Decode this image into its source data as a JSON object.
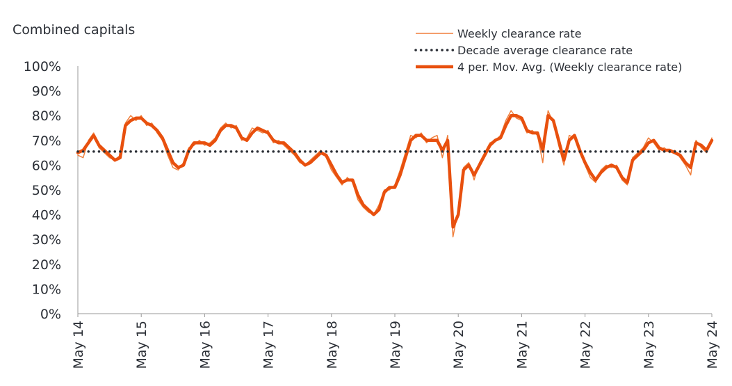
{
  "chart_data": {
    "type": "line",
    "title": "Combined capitals",
    "categories": [
      "May 14",
      null,
      null,
      null,
      null,
      null,
      null,
      null,
      null,
      null,
      null,
      null,
      "May 15",
      null,
      null,
      null,
      null,
      null,
      null,
      null,
      null,
      null,
      null,
      null,
      "May 16",
      null,
      null,
      null,
      null,
      null,
      null,
      null,
      null,
      null,
      null,
      null,
      "May 17",
      null,
      null,
      null,
      null,
      null,
      null,
      null,
      null,
      null,
      null,
      null,
      "May 18",
      null,
      null,
      null,
      null,
      null,
      null,
      null,
      null,
      null,
      null,
      null,
      "May 19",
      null,
      null,
      null,
      null,
      null,
      null,
      null,
      null,
      null,
      null,
      null,
      "May 20",
      null,
      null,
      null,
      null,
      null,
      null,
      null,
      null,
      null,
      null,
      null,
      "May 21",
      null,
      null,
      null,
      null,
      null,
      null,
      null,
      null,
      null,
      null,
      null,
      "May 22",
      null,
      null,
      null,
      null,
      null,
      null,
      null,
      null,
      null,
      null,
      null,
      "May 23",
      null,
      null,
      null,
      null,
      null,
      null,
      null,
      null,
      null,
      null,
      null,
      "May 24"
    ],
    "series": [
      {
        "name": "Weekly clearance rate",
        "color": "#f07f3c",
        "style": "thin",
        "values": [
          64,
          63,
          70,
          73,
          67,
          65,
          63,
          62,
          64,
          77,
          80,
          78,
          80,
          76,
          77,
          73,
          70,
          64,
          59,
          58,
          61,
          67,
          68,
          70,
          68,
          69,
          71,
          75,
          77,
          75,
          76,
          70,
          71,
          75,
          74,
          73,
          74,
          69,
          70,
          68,
          66,
          64,
          61,
          60,
          62,
          64,
          66,
          63,
          58,
          55,
          52,
          55,
          53,
          46,
          43,
          41,
          40,
          44,
          50,
          50,
          52,
          58,
          65,
          72,
          71,
          73,
          69,
          71,
          72,
          63,
          72,
          31,
          42,
          59,
          61,
          54,
          61,
          65,
          69,
          70,
          72,
          78,
          82,
          79,
          78,
          73,
          74,
          72,
          61,
          82,
          77,
          68,
          60,
          72,
          71,
          65,
          60,
          55,
          53,
          58,
          60,
          59,
          60,
          54,
          52,
          63,
          65,
          67,
          71,
          69,
          66,
          67,
          65,
          66,
          63,
          60,
          56,
          70,
          67,
          65,
          71
        ]
      },
      {
        "name": "Decade average clearance rate",
        "color": "#2b2f36",
        "style": "dotted",
        "values": [
          65.5,
          65.5,
          65.5,
          65.5,
          65.5,
          65.5,
          65.5,
          65.5,
          65.5,
          65.5,
          65.5,
          65.5,
          65.5,
          65.5,
          65.5,
          65.5,
          65.5,
          65.5,
          65.5,
          65.5,
          65.5,
          65.5,
          65.5,
          65.5,
          65.5,
          65.5,
          65.5,
          65.5,
          65.5,
          65.5,
          65.5,
          65.5,
          65.5,
          65.5,
          65.5,
          65.5,
          65.5,
          65.5,
          65.5,
          65.5,
          65.5,
          65.5,
          65.5,
          65.5,
          65.5,
          65.5,
          65.5,
          65.5,
          65.5,
          65.5,
          65.5,
          65.5,
          65.5,
          65.5,
          65.5,
          65.5,
          65.5,
          65.5,
          65.5,
          65.5,
          65.5,
          65.5,
          65.5,
          65.5,
          65.5,
          65.5,
          65.5,
          65.5,
          65.5,
          65.5,
          65.5,
          65.5,
          65.5,
          65.5,
          65.5,
          65.5,
          65.5,
          65.5,
          65.5,
          65.5,
          65.5,
          65.5,
          65.5,
          65.5,
          65.5,
          65.5,
          65.5,
          65.5,
          65.5,
          65.5,
          65.5,
          65.5,
          65.5,
          65.5,
          65.5,
          65.5,
          65.5,
          65.5,
          65.5,
          65.5,
          65.5,
          65.5,
          65.5,
          65.5,
          65.5,
          65.5,
          65.5,
          65.5,
          65.5,
          65.5,
          65.5,
          65.5,
          65.5,
          65.5,
          65.5,
          65.5,
          65.5,
          65.5,
          65.5,
          65.5,
          65.5
        ]
      },
      {
        "name": "4 per. Mov. Avg. (Weekly clearance rate)",
        "color": "#e8500e",
        "style": "thick",
        "values": [
          65,
          66,
          69,
          72,
          68,
          66,
          64,
          62,
          63,
          76,
          78,
          79,
          79,
          77,
          76,
          74,
          71,
          66,
          61,
          59,
          60,
          66,
          69,
          69,
          69,
          68,
          70,
          74,
          76,
          76,
          75,
          71,
          70,
          73,
          75,
          74,
          73,
          70,
          69,
          69,
          67,
          65,
          62,
          60,
          61,
          63,
          65,
          64,
          60,
          56,
          53,
          54,
          54,
          48,
          44,
          42,
          40,
          42,
          49,
          51,
          51,
          56,
          63,
          70,
          72,
          72,
          70,
          70,
          70,
          66,
          70,
          35,
          40,
          58,
          60,
          56,
          60,
          64,
          68,
          70,
          71,
          76,
          80,
          80,
          79,
          74,
          73,
          73,
          66,
          80,
          78,
          70,
          62,
          70,
          72,
          66,
          61,
          57,
          54,
          57,
          59,
          60,
          59,
          55,
          53,
          62,
          64,
          66,
          69,
          70,
          67,
          66,
          66,
          65,
          64,
          61,
          59,
          69,
          68,
          66,
          70
        ]
      }
    ],
    "ylim": [
      0,
      100
    ],
    "yticks": [
      {
        "value": 0,
        "label": "0%"
      },
      {
        "value": 10,
        "label": "10%"
      },
      {
        "value": 20,
        "label": "20%"
      },
      {
        "value": 30,
        "label": "30%"
      },
      {
        "value": 40,
        "label": "40%"
      },
      {
        "value": 50,
        "label": "50%"
      },
      {
        "value": 60,
        "label": "60%"
      },
      {
        "value": 70,
        "label": "70%"
      },
      {
        "value": 80,
        "label": "80%"
      },
      {
        "value": 90,
        "label": "90%"
      },
      {
        "value": 100,
        "label": "100%"
      }
    ],
    "grid": false,
    "legend": "top-right"
  }
}
